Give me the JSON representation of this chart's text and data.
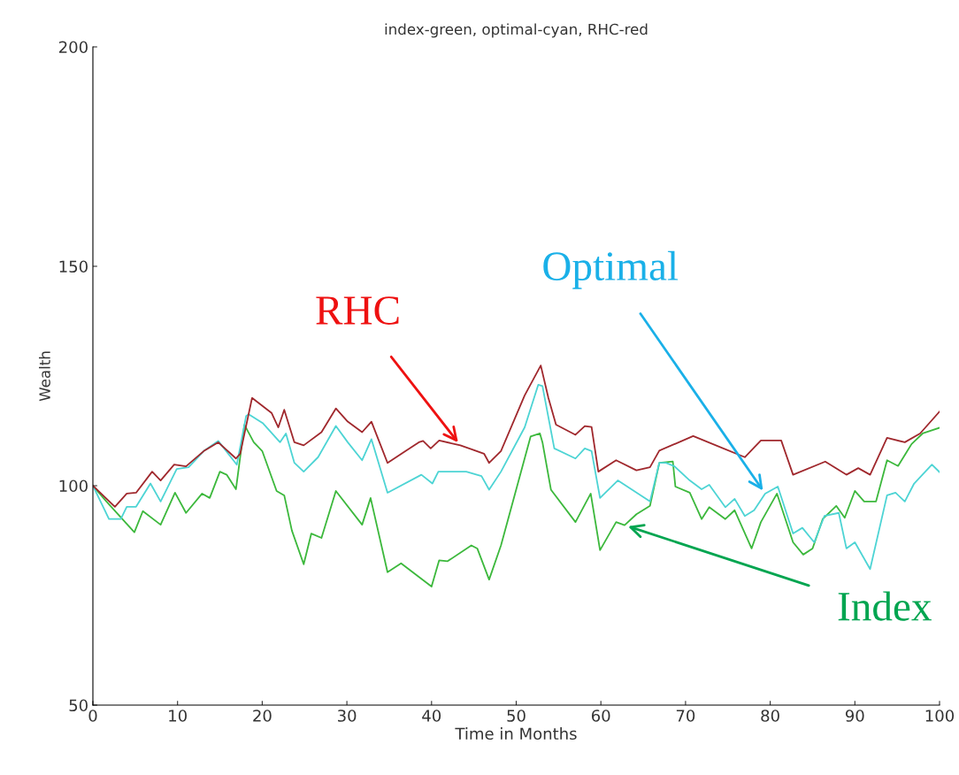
{
  "chart_data": {
    "type": "line",
    "title": "index-green, optimal-cyan, RHC-red",
    "xlabel": "Time in Months",
    "ylabel": "Wealth",
    "xlim": [
      0,
      100
    ],
    "ylim": [
      50,
      200
    ],
    "xticks": [
      0,
      10,
      20,
      30,
      40,
      50,
      60,
      70,
      80,
      90,
      100
    ],
    "yticks": [
      50,
      100,
      150,
      200
    ],
    "grid": false,
    "legend": false,
    "series": [
      {
        "name": "Index",
        "color": "#3cb83c",
        "x": [
          0,
          1.6,
          4.9,
          5.9,
          8,
          9.7,
          11,
          12.9,
          13.8,
          15,
          15.8,
          16.9,
          17.9,
          19,
          20,
          21.7,
          22.6,
          23.5,
          24.9,
          25.8,
          27,
          28.7,
          31.8,
          32.8,
          34.8,
          36.4,
          40,
          40.9,
          41.9,
          44.7,
          45.4,
          46.8,
          48.2,
          51.7,
          52.8,
          53.1,
          54.1,
          57,
          58.8,
          59.9,
          61.8,
          62.8,
          64.2,
          65.8,
          66.9,
          68.5,
          68.8,
          70.5,
          71.9,
          72.8,
          74.7,
          75.8,
          77.8,
          78.9,
          80.8,
          82.7,
          83.9,
          85,
          86.2,
          87.8,
          88.8,
          90,
          91.1,
          92.5,
          93.8,
          95.1,
          96.7,
          98,
          100
        ],
        "values": [
          100,
          96.4,
          89.4,
          94.2,
          91.1,
          98.4,
          93.8,
          98.2,
          97.2,
          103.2,
          102.5,
          99.2,
          113.9,
          109.9,
          107.9,
          98.8,
          97.8,
          89.8,
          82.1,
          89.1,
          88.1,
          98.8,
          91.1,
          97.2,
          80.3,
          82.3,
          77,
          83,
          82.8,
          86.4,
          85.7,
          78.6,
          86.4,
          111.2,
          111.9,
          109.9,
          99.1,
          91.7,
          98.2,
          85.3,
          91.7,
          91,
          93.5,
          95.4,
          105.2,
          105.5,
          99.8,
          98.4,
          92.4,
          95.1,
          92.4,
          94.4,
          85.7,
          91.7,
          98.2,
          87.1,
          84.3,
          85.7,
          92.4,
          95.4,
          92.7,
          98.8,
          96.4,
          96.4,
          105.8,
          104.5,
          109.5,
          111.9,
          113.2
        ]
      },
      {
        "name": "Optimal",
        "color": "#4dd4d4",
        "x": [
          0,
          1.9,
          3.3,
          4,
          5.1,
          6.8,
          8,
          9.9,
          11.3,
          13.1,
          14.8,
          17,
          18.1,
          18.4,
          20.1,
          22.1,
          22.8,
          23.8,
          24.9,
          26.6,
          28.7,
          30.1,
          31.8,
          32.9,
          34.8,
          38.8,
          40.1,
          40.8,
          44.1,
          45.9,
          46.8,
          48.2,
          51,
          52.6,
          53.1,
          54.5,
          57,
          58.1,
          58.9,
          59.9,
          62,
          65.8,
          66.9,
          67.7,
          68.7,
          70.5,
          71.9,
          72.8,
          74.7,
          75.8,
          77,
          78.1,
          79.4,
          80.9,
          82.7,
          83.8,
          85.2,
          86.4,
          88.1,
          89,
          90,
          91.8,
          93.8,
          94.8,
          95.9,
          97,
          99.1,
          100
        ],
        "values": [
          100,
          92.4,
          92.4,
          95.2,
          95.2,
          100.5,
          96.4,
          103.8,
          104.2,
          107.9,
          110.2,
          104.8,
          115.9,
          116.3,
          114.2,
          109.9,
          111.9,
          105.2,
          103.2,
          106.5,
          113.6,
          109.9,
          105.8,
          110.6,
          98.4,
          102.5,
          100.5,
          103.2,
          103.2,
          102.2,
          99.1,
          103.2,
          113.3,
          123,
          122.7,
          108.5,
          106.2,
          108.5,
          107.9,
          97.2,
          101.2,
          96.4,
          105.2,
          105.2,
          104.4,
          101.2,
          99.2,
          100.2,
          95.1,
          97,
          93.1,
          94.4,
          98.2,
          99.8,
          89.1,
          90.4,
          87.1,
          93.1,
          93.8,
          85.7,
          87.1,
          81,
          97.8,
          98.4,
          96.4,
          100.5,
          104.8,
          103.1
        ]
      },
      {
        "name": "RHC",
        "color": "#a0282d",
        "x": [
          0,
          2.6,
          4,
          5.1,
          7,
          8,
          9.6,
          11,
          13.1,
          14.8,
          16.9,
          17.4,
          18.8,
          21.1,
          21.9,
          22.6,
          23.8,
          24.9,
          27,
          28.7,
          30.1,
          31.8,
          32.9,
          34.8,
          38.5,
          39,
          39.9,
          40.9,
          43.4,
          46.2,
          46.8,
          48.2,
          51,
          52.9,
          53.8,
          54.7,
          57,
          58.1,
          58.9,
          59.7,
          61.8,
          64.2,
          65.8,
          66.9,
          70.9,
          77,
          78.9,
          81.3,
          82.7,
          86.5,
          89,
          90.4,
          91.8,
          93.8,
          95.9,
          97.7,
          100
        ],
        "values": [
          100,
          95.2,
          98.2,
          98.4,
          103.2,
          101.2,
          104.8,
          104.4,
          107.9,
          109.9,
          106.2,
          107.3,
          120,
          116.6,
          113.3,
          117.3,
          109.9,
          109.2,
          112.2,
          117.6,
          114.6,
          112.2,
          114.6,
          105.2,
          109.9,
          110.2,
          108.5,
          110.3,
          109.2,
          107.3,
          105.2,
          107.9,
          120.6,
          127.4,
          120,
          113.9,
          111.6,
          113.6,
          113.4,
          103.2,
          105.8,
          103.5,
          104.2,
          108,
          111.3,
          106.5,
          110.3,
          110.3,
          102.5,
          105.5,
          102.5,
          104,
          102.5,
          110.9,
          109.9,
          111.9,
          116.9
        ]
      }
    ]
  }
}
